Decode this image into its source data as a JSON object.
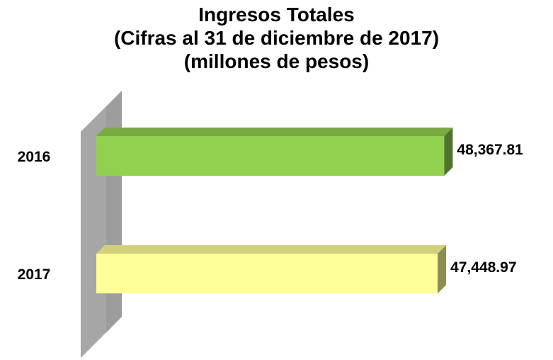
{
  "chart_data": {
    "type": "bar",
    "orientation": "horizontal",
    "title_lines": [
      "Ingresos Totales",
      "(Cifras al 31 de diciembre de 2017)",
      "(millones de pesos)"
    ],
    "categories": [
      "2016",
      "2017"
    ],
    "values": [
      48367.81,
      47448.97
    ],
    "value_labels": [
      "48,367.81",
      "47,448.97"
    ],
    "colors": [
      "#92d050",
      "#ffff99"
    ],
    "xlim": [
      0,
      50000
    ],
    "grid": false,
    "legend": "none",
    "style": "3d"
  }
}
